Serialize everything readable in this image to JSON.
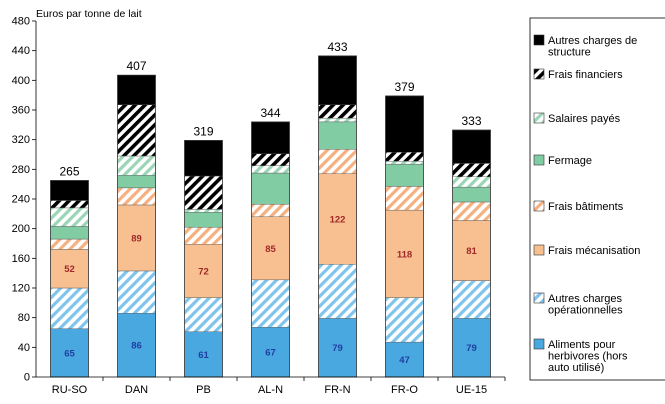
{
  "chart_data": {
    "type": "bar",
    "stacked": true,
    "ylabel": "Euros par tonne de lait",
    "ylim": [
      0,
      480
    ],
    "yticks": [
      0,
      40,
      80,
      120,
      160,
      200,
      240,
      280,
      320,
      360,
      400,
      440,
      480
    ],
    "grid": false,
    "legend_position": "right",
    "categories": [
      "RU-SO",
      "DAN",
      "PB",
      "AL-N",
      "FR-N",
      "FR-O",
      "UE-15"
    ],
    "totals": [
      265,
      407,
      319,
      344,
      433,
      379,
      333
    ],
    "total_labels": [
      "265",
      "407",
      "319",
      "344",
      "433",
      "379",
      "333"
    ],
    "series": [
      {
        "name": "Aliments pour herbivores (hors auto utilisé)",
        "color": "#4aa8e0",
        "pattern": "solid",
        "values": [
          65,
          86,
          61,
          67,
          79,
          47,
          79
        ],
        "labels": [
          "65",
          "86",
          "61",
          "67",
          "79",
          "47",
          "79"
        ],
        "label_color": "#1f3fa0"
      },
      {
        "name": "Autres charges opérationnelles",
        "color": "#7fc4ec",
        "pattern": "hatch",
        "values": [
          55,
          57,
          46,
          64,
          73,
          60,
          51
        ]
      },
      {
        "name": "Frais mécanisation",
        "color": "#f8c090",
        "pattern": "solid",
        "values": [
          52,
          89,
          72,
          85,
          122,
          118,
          81
        ],
        "labels": [
          "52",
          "89",
          "72",
          "85",
          "122",
          "118",
          "81"
        ],
        "label_color": "#a0282a"
      },
      {
        "name": "Frais bâtiments",
        "color": "#f6b080",
        "pattern": "hatch",
        "values": [
          14,
          23,
          23,
          17,
          33,
          32,
          25
        ]
      },
      {
        "name": "Fermage",
        "color": "#82cca4",
        "pattern": "solid",
        "values": [
          17,
          17,
          20,
          42,
          37,
          30,
          20
        ]
      },
      {
        "name": "Salaires payés",
        "color": "#9ad6b6",
        "pattern": "hatch",
        "values": [
          25,
          26,
          4,
          10,
          5,
          4,
          14
        ]
      },
      {
        "name": "Frais financiers",
        "color": "#000000",
        "pattern": "hatch",
        "values": [
          10,
          69,
          45,
          16,
          18,
          12,
          18
        ]
      },
      {
        "name": "Autres charges de structure",
        "color": "#000000",
        "pattern": "solid",
        "values": [
          27,
          40,
          48,
          43,
          66,
          76,
          45
        ]
      }
    ]
  }
}
